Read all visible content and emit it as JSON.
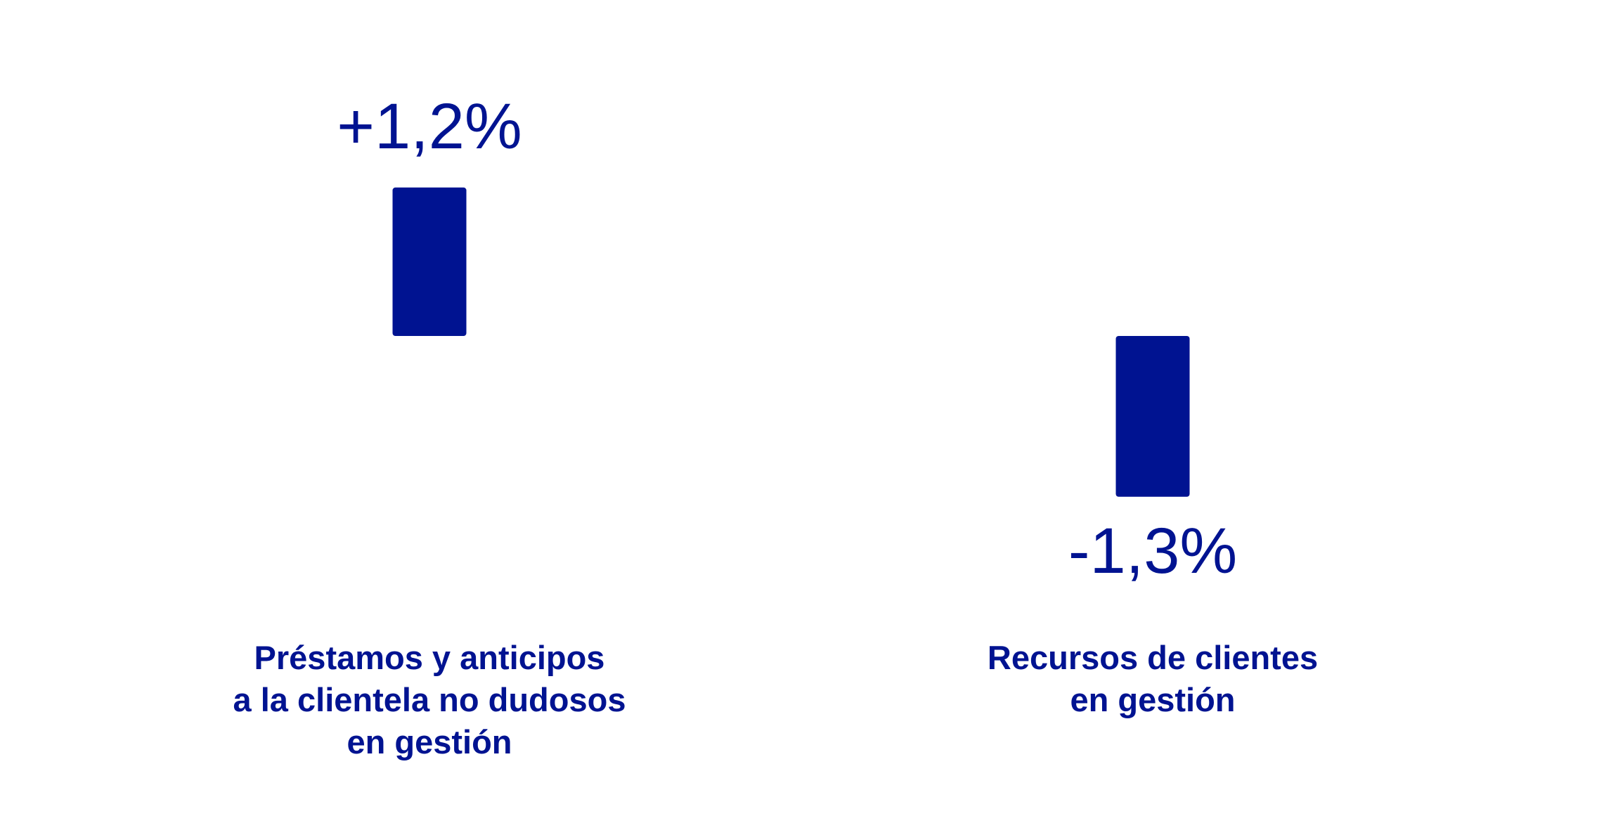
{
  "chart_data": {
    "type": "bar",
    "categories": [
      "Préstamos y anticipos\na la clientela no dudosos\nen gestión",
      "Recursos de clientes\nen gestión"
    ],
    "values": [
      1.2,
      -1.3
    ],
    "value_labels": [
      "+1,2%",
      "-1,3%"
    ],
    "color": "#001391"
  }
}
